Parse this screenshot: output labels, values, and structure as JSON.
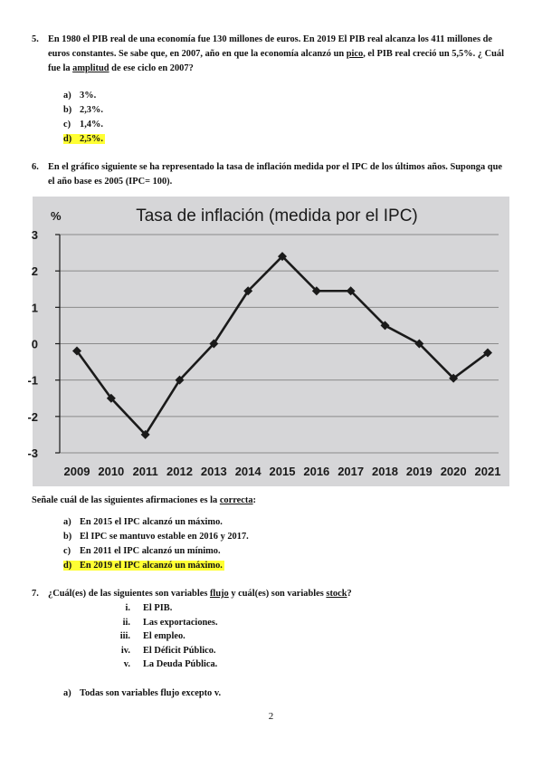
{
  "q5": {
    "number": "5.",
    "text_1": "En 1980 el PIB real de una economía fue 130 millones de euros. En 2019 El PIB real alcanza los 411 millones de euros constantes. Se sabe que, en 2007, año en que la economía alcanzó un ",
    "text_pico": "pico",
    "text_2": ", el PIB real creció un 5,5%. ¿ Cuál fue la ",
    "text_amplitud": "amplitud",
    "text_3": " de ese ciclo en 2007?",
    "options": [
      {
        "label": "a)",
        "text": "3%.",
        "highlighted": false
      },
      {
        "label": "b)",
        "text": "2,3%.",
        "highlighted": false
      },
      {
        "label": "c)",
        "text": "1,4%.",
        "highlighted": false
      },
      {
        "label": "d)",
        "text": "2,5%.",
        "highlighted": true
      }
    ]
  },
  "q6": {
    "number": "6.",
    "text": "En el gráfico siguiente se ha representado la tasa de inflación medida por el IPC de los últimos años. Suponga que el año base es 2005 (IPC= 100).",
    "instruction_1": "Señale cuál de las siguientes afirmaciones es la ",
    "instruction_underlined": "correcta",
    "instruction_2": ":",
    "options": [
      {
        "label": "a)",
        "text": "En 2015 el IPC alcanzó un máximo.",
        "highlighted": false
      },
      {
        "label": "b)",
        "text": "El IPC se mantuvo estable en 2016 y 2017.",
        "highlighted": false
      },
      {
        "label": "c)",
        "text": "En 2011 el IPC alcanzó un mínimo.",
        "highlighted": false
      },
      {
        "label": "d)",
        "text": "En 2019 el IPC alcanzó un máximo.",
        "highlighted": true
      }
    ]
  },
  "chart_data": {
    "type": "line",
    "title": "Tasa de inflación (medida por el IPC)",
    "ylabel": "%",
    "xlabel": "",
    "categories": [
      "2009",
      "2010",
      "2011",
      "2012",
      "2013",
      "2014",
      "2015",
      "2016",
      "2017",
      "2018",
      "2019",
      "2020",
      "2021"
    ],
    "values": [
      -0.2,
      -1.5,
      -2.5,
      -1.0,
      0.0,
      1.45,
      2.4,
      1.45,
      1.45,
      0.5,
      0.0,
      -0.95,
      -0.25
    ],
    "yticks": [
      "3",
      "2",
      "1",
      "0",
      "-1",
      "-2",
      "-3"
    ],
    "ylim": [
      -3,
      3
    ],
    "grid": true,
    "colors": {
      "line": "#1a1a1a",
      "background": "#d6d6d8",
      "grid": "#8a8a8a"
    }
  },
  "q7": {
    "number": "7.",
    "text_1": "¿Cuál(es) de las siguientes son variables ",
    "text_flujo": "flujo",
    "text_2": " y cuál(es) son variables ",
    "text_stock": "stock",
    "text_3": "?",
    "items": [
      {
        "num": "i.",
        "text": "El PIB."
      },
      {
        "num": "ii.",
        "text": "Las exportaciones."
      },
      {
        "num": "iii.",
        "text": "El empleo."
      },
      {
        "num": "iv.",
        "text": "El Déficit Público."
      },
      {
        "num": "v.",
        "text": "La Deuda Pública."
      }
    ],
    "option_a": {
      "label": "a)",
      "text": "Todas son variables flujo excepto v."
    }
  },
  "page_number": "2"
}
